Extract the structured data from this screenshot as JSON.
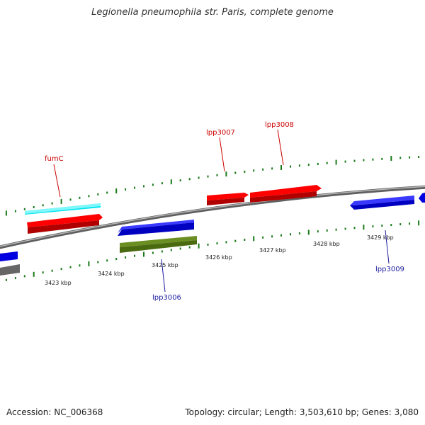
{
  "title": "Legionella pneumophila str. Paris, complete genome",
  "footer": {
    "accession": "Accession: NC_006368",
    "stats": "Topology: circular; Length: 3,503,610 bp; Genes: 3,080"
  },
  "colors": {
    "forward_cds": "#ff0000",
    "reverse_cds": "#0000ff",
    "trna_like": "#00e5f0",
    "rrna_like": "#6b8e23",
    "other": "#666666",
    "backbone": "#8a8a8a",
    "ticks": "#1a7a1a",
    "label_forward": "#cc0000",
    "label_reverse": "#1a1aa0"
  },
  "scale": {
    "tick_labels": [
      "3423 kbp",
      "3424 kbp",
      "3425 kbp",
      "3426 kbp",
      "3427 kbp",
      "3428 kbp",
      "3429 kbp"
    ]
  },
  "gene_labels": [
    {
      "name": "fumC",
      "strand": "forward"
    },
    {
      "name": "lpp3007",
      "strand": "forward"
    },
    {
      "name": "lpp3008",
      "strand": "forward"
    },
    {
      "name": "lpp3006",
      "strand": "reverse"
    },
    {
      "name": "lpp3009",
      "strand": "reverse"
    }
  ]
}
